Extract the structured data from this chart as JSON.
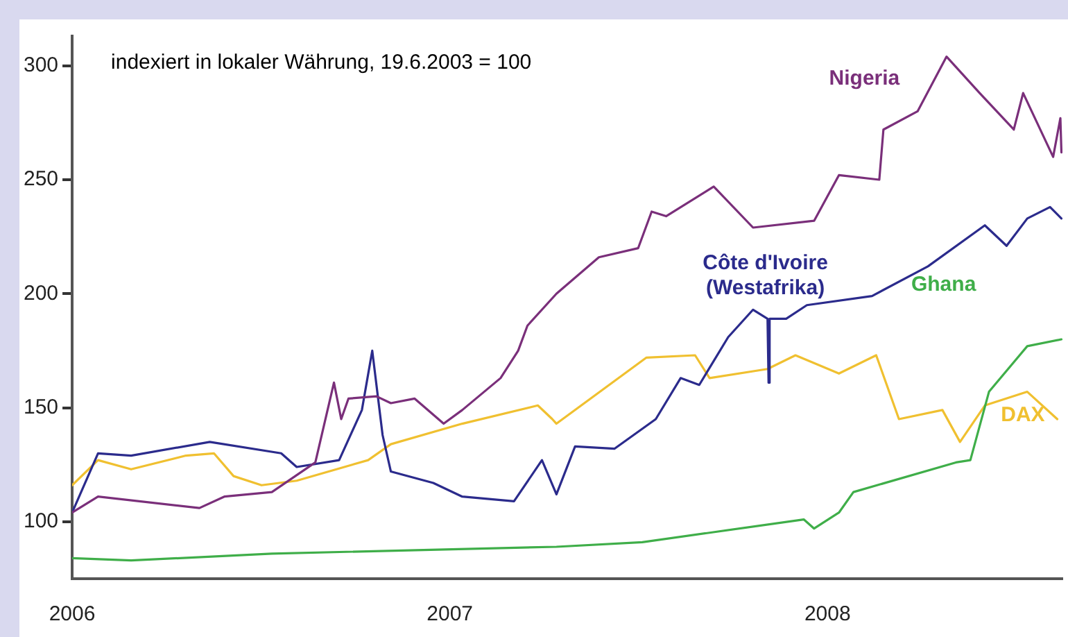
{
  "chart_data": {
    "type": "line",
    "annotations": [
      "indexiert in lokaler Währung, 19.6.2003 = 100"
    ],
    "xlim": [
      "2006-01-01",
      "2008-08-15"
    ],
    "xticks": [
      {
        "value": "2006",
        "label": "2006"
      },
      {
        "value": "2007",
        "label": "2007"
      },
      {
        "value": "2008",
        "label": "2008"
      }
    ],
    "ylim": [
      75,
      313
    ],
    "yticks": [
      100,
      150,
      200,
      250,
      300
    ],
    "legend": false,
    "marker": "none",
    "line_style": "solid",
    "series": [
      {
        "name": "Nigeria",
        "color": "#7a2f7a",
        "x": [
          "2006-01-01",
          "2006-01-26",
          "2006-05-04",
          "2006-05-28",
          "2006-07-13",
          "2006-08-24",
          "2006-09-11",
          "2006-09-18",
          "2006-09-25",
          "2006-10-22",
          "2006-11-05",
          "2006-11-28",
          "2006-12-26",
          "2007-01-13",
          "2007-02-19",
          "2007-03-08",
          "2007-03-17",
          "2007-04-14",
          "2007-05-25",
          "2007-07-02",
          "2007-07-15",
          "2007-07-29",
          "2007-09-13",
          "2007-10-21",
          "2007-12-19",
          "2008-01-12",
          "2008-02-20",
          "2008-02-24",
          "2008-03-28",
          "2008-04-25",
          "2008-05-27",
          "2008-06-29",
          "2008-07-08",
          "2008-08-06",
          "2008-08-13",
          "2008-08-14"
        ],
        "values": [
          104,
          111,
          106,
          111,
          113,
          126,
          161,
          145,
          154,
          155,
          152,
          154,
          143,
          149,
          163,
          175,
          186,
          200,
          216,
          220,
          236,
          234,
          247,
          229,
          232,
          252,
          250,
          272,
          280,
          304,
          288,
          272,
          288,
          260,
          277,
          262
        ]
      },
      {
        "name": "Côte d'Ivoire\n(Westafrika)",
        "color": "#2b2b8c",
        "x": [
          "2006-01-01",
          "2006-01-26",
          "2006-02-27",
          "2006-05-14",
          "2006-07-22",
          "2006-08-06",
          "2006-09-16",
          "2006-10-08",
          "2006-10-18",
          "2006-10-28",
          "2006-11-05",
          "2006-12-16",
          "2007-01-13",
          "2007-03-04",
          "2007-03-31",
          "2007-04-14",
          "2007-05-02",
          "2007-06-09",
          "2007-07-19",
          "2007-08-12",
          "2007-08-30",
          "2007-09-27",
          "2007-10-21",
          "2007-11-04",
          "2007-11-05",
          "2007-11-06",
          "2007-11-22",
          "2007-12-12",
          "2008-02-13",
          "2008-04-07",
          "2008-06-01",
          "2008-06-22",
          "2008-07-12",
          "2008-08-03",
          "2008-08-14"
        ],
        "values": [
          104,
          130,
          129,
          135,
          130,
          124,
          127,
          149,
          175,
          138,
          122,
          117,
          111,
          109,
          127,
          112,
          133,
          132,
          145,
          163,
          160,
          181,
          193,
          189,
          161,
          189,
          189,
          195,
          199,
          212,
          230,
          221,
          233,
          238,
          233
        ]
      },
      {
        "name": "Ghana",
        "color": "#3fae49",
        "x": [
          "2006-01-01",
          "2006-02-27",
          "2006-07-13",
          "2007-04-14",
          "2007-07-06",
          "2007-12-09",
          "2007-12-19",
          "2008-01-12",
          "2008-01-26",
          "2008-05-04",
          "2008-05-18",
          "2008-06-05",
          "2008-07-12",
          "2008-08-14"
        ],
        "values": [
          84,
          83,
          86,
          89,
          91,
          101,
          97,
          104,
          113,
          126,
          127,
          157,
          177,
          180
        ]
      },
      {
        "name": "DAX",
        "color": "#f0c030",
        "x": [
          "2006-01-01",
          "2006-01-26",
          "2006-02-27",
          "2006-04-21",
          "2006-05-18",
          "2006-06-06",
          "2006-07-03",
          "2006-08-06",
          "2006-10-14",
          "2006-11-05",
          "2007-01-13",
          "2007-03-27",
          "2007-04-10",
          "2007-04-14",
          "2007-07-10",
          "2007-08-26",
          "2007-09-09",
          "2007-11-04",
          "2007-12-01",
          "2008-01-12",
          "2008-02-17",
          "2008-03-10",
          "2008-04-21",
          "2008-05-08",
          "2008-06-01",
          "2008-07-12",
          "2008-08-10"
        ],
        "values": [
          116,
          127,
          123,
          129,
          130,
          120,
          116,
          118,
          127,
          134,
          143,
          151,
          145,
          143,
          172,
          173,
          163,
          167,
          173,
          165,
          173,
          145,
          149,
          135,
          151,
          157,
          145
        ]
      }
    ]
  }
}
